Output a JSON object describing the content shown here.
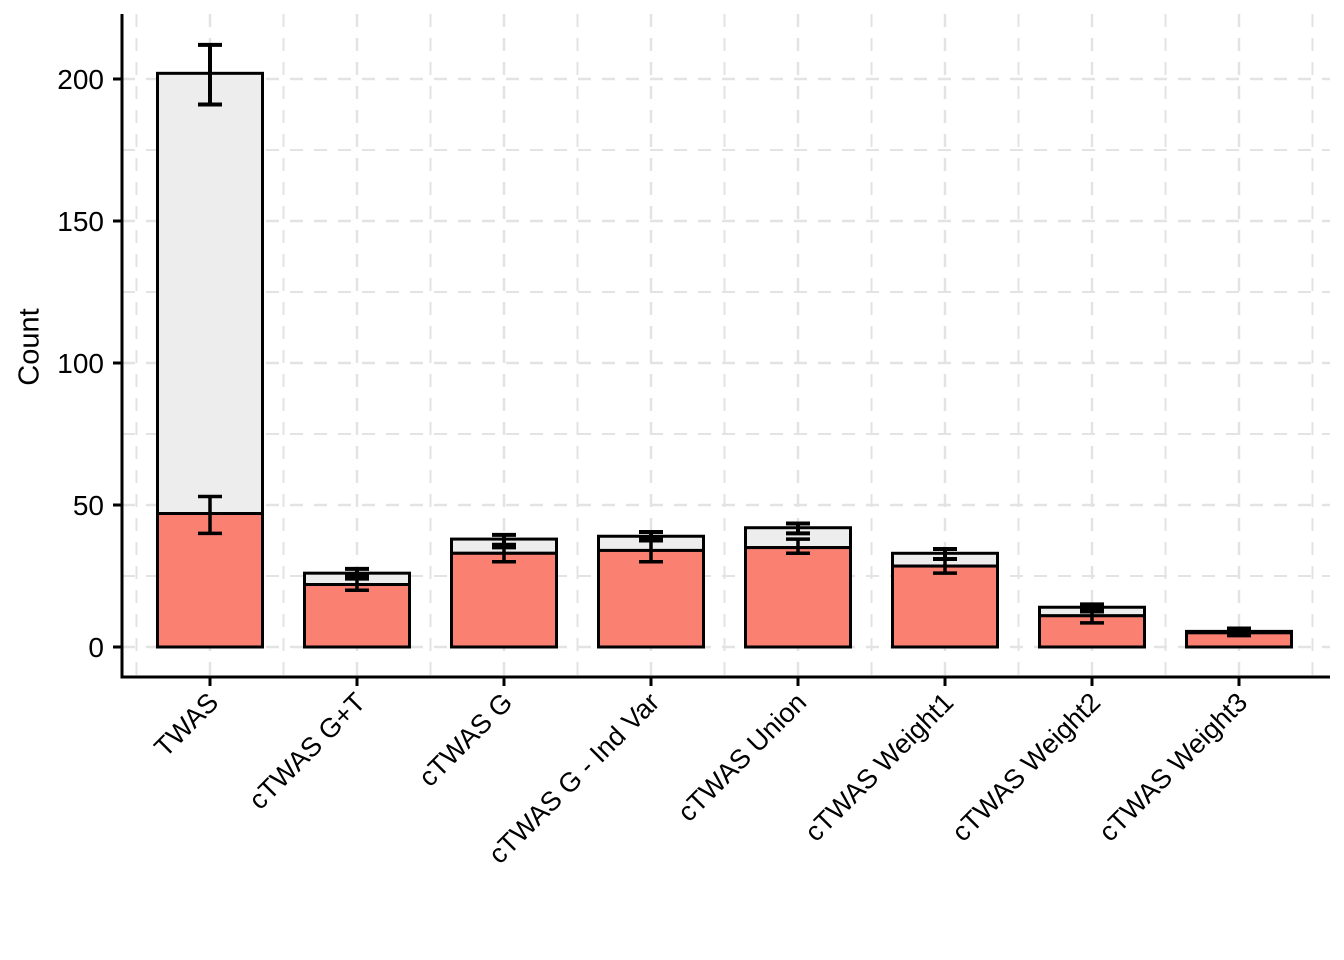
{
  "page": {
    "background": "#ffffff"
  },
  "chart_data": {
    "type": "bar",
    "stacked": true,
    "title": "",
    "xlabel": "",
    "ylabel": "Count",
    "legend_position": "none",
    "categories": [
      "TWAS",
      "cTWAS G+T",
      "cTWAS G",
      "cTWAS G - Ind Var",
      "cTWAS Union",
      "cTWAS Weight1",
      "cTWAS Weight2",
      "cTWAS Weight3"
    ],
    "series": [
      {
        "name": "red-bottom-segment",
        "color": "#FA8072",
        "values": [
          47,
          22,
          33,
          34,
          35,
          28.5,
          11,
          5
        ]
      },
      {
        "name": "grey-top-segment",
        "color": "#EDEDED",
        "values": [
          155,
          4,
          5,
          5,
          7,
          4.5,
          3,
          0.5
        ]
      }
    ],
    "totals": [
      202,
      26,
      38,
      39,
      42,
      33,
      14,
      5.5
    ],
    "error_bars": {
      "red_segment": [
        [
          40,
          53
        ],
        [
          20,
          24
        ],
        [
          30,
          35
        ],
        [
          30,
          38
        ],
        [
          33,
          38
        ],
        [
          26,
          31
        ],
        [
          8.5,
          13
        ],
        [
          4,
          6
        ]
      ],
      "total": [
        [
          191,
          212
        ],
        [
          25,
          27.5
        ],
        [
          36,
          39.5
        ],
        [
          37.5,
          40.5
        ],
        [
          40,
          43.5
        ],
        [
          31,
          34.5
        ],
        [
          12.5,
          15
        ],
        [
          4.5,
          6.5
        ]
      ]
    },
    "y_ticks": [
      0,
      50,
      100,
      150,
      200
    ],
    "y_minor_ticks": [
      25,
      75,
      125,
      175
    ],
    "ylim": [
      -11,
      224
    ],
    "x_tick_angle": 45,
    "grid": {
      "major": "dashed",
      "minor": "dashed",
      "color": "#E3E3E3"
    },
    "axis_color": "#000000",
    "bar_outline_color": "#000000",
    "errorbar_color": "#000000",
    "text_color": "#000000"
  }
}
